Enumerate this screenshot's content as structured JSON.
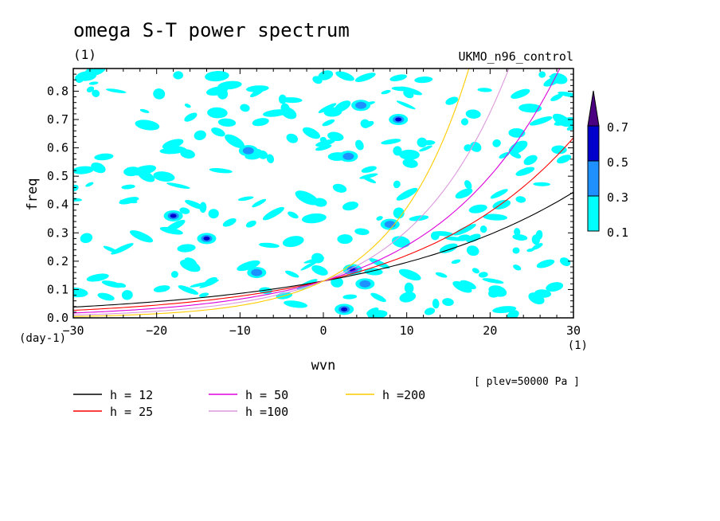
{
  "chart_data": {
    "type": "heatmap",
    "title": "omega S-T power spectrum",
    "units_label": "(1)",
    "run_label": "UKMO_n96_control",
    "xlabel": "wvn",
    "ylabel": "freq",
    "x_unit_label": "(1)",
    "y_unit_label": "(day-1)",
    "plev_label": "[ plev=50000 Pa ]",
    "xlim": [
      -30,
      30
    ],
    "ylim": [
      0,
      0.88
    ],
    "xticks": [
      -30,
      -20,
      -10,
      0,
      10,
      20,
      30
    ],
    "yticks": [
      0.0,
      0.1,
      0.2,
      0.3,
      0.4,
      0.5,
      0.6,
      0.7,
      0.8
    ],
    "ytick_labels": [
      "0.0",
      "0.1",
      "0.2",
      "0.3",
      "0.4",
      "0.5",
      "0.6",
      "0.7",
      "0.8"
    ],
    "colorbar": {
      "levels": [
        "0.1",
        "0.3",
        "0.5",
        "0.7"
      ],
      "colors": [
        "#00ffff",
        "#1e90ff",
        "#0000cd",
        "#4b0082"
      ]
    },
    "dispersion_curves": [
      {
        "name": "h = 12",
        "h": 12,
        "color": "#000000"
      },
      {
        "name": "h = 25",
        "h": 25,
        "color": "#ff0000"
      },
      {
        "name": "h = 50",
        "h": 50,
        "color": "#dd00dd"
      },
      {
        "name": "h =100",
        "h": 100,
        "color": "#dd99dd"
      },
      {
        "name": "h =200",
        "h": 200,
        "color": "#ffcc00"
      }
    ],
    "blobs": [
      {
        "k": 2.5,
        "f": 0.03,
        "level": 3
      },
      {
        "k": 3.5,
        "f": 0.17,
        "level": 3
      },
      {
        "k": 9,
        "f": 0.7,
        "level": 3
      },
      {
        "k": -18,
        "f": 0.36,
        "level": 3
      },
      {
        "k": -14,
        "f": 0.28,
        "level": 3
      },
      {
        "k": 3,
        "f": 0.57,
        "level": 2
      },
      {
        "k": 8,
        "f": 0.33,
        "level": 2
      },
      {
        "k": -8,
        "f": 0.16,
        "level": 2
      },
      {
        "k": 5,
        "f": 0.12,
        "level": 2
      },
      {
        "k": -9,
        "f": 0.59,
        "level": 2
      },
      {
        "k": 4.5,
        "f": 0.75,
        "level": 2
      }
    ]
  }
}
